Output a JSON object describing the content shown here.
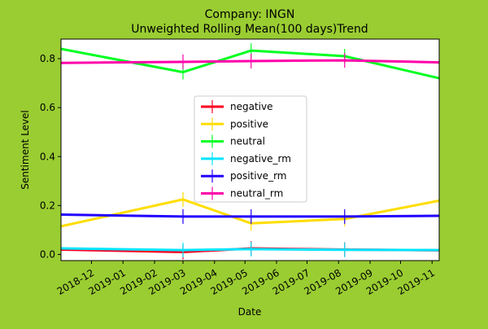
{
  "title": "Company: INGN",
  "subtitle": "Unweighted Rolling Mean(100 days)Trend",
  "chart_data": {
    "type": "line",
    "title": "Company: INGN",
    "subtitle": "Unweighted Rolling Mean(100 days)Trend",
    "xlabel": "Date",
    "ylabel": "Sentiment Level",
    "x_tick_labels": [
      "2018-12",
      "2019-01",
      "2019-02",
      "2019-03",
      "2019-04",
      "2019-05",
      "2019-06",
      "2019-07",
      "2019-08",
      "2019-09",
      "2019-10",
      "2019-11"
    ],
    "y_tick_labels": [
      "0.0",
      "0.2",
      "0.4",
      "0.6",
      "0.8"
    ],
    "xlim": [
      "2018-11-01",
      "2019-11-08"
    ],
    "ylim": [
      -0.025,
      0.88
    ],
    "grid": false,
    "legend_placement": "center",
    "series": [
      {
        "name": "negative",
        "color": "#ff0022",
        "x": [
          "2018-11-01",
          "2019-03-01",
          "2019-05-07",
          "2019-08-07",
          "2019-11-08"
        ],
        "values": [
          0.02,
          0.01,
          0.025,
          0.02,
          0.017
        ]
      },
      {
        "name": "positive",
        "color": "#ffdd00",
        "x": [
          "2018-11-01",
          "2019-03-01",
          "2019-05-07",
          "2019-08-07",
          "2019-11-08"
        ],
        "values": [
          0.115,
          0.225,
          0.127,
          0.145,
          0.22
        ]
      },
      {
        "name": "neutral",
        "color": "#00ff22",
        "x": [
          "2018-11-01",
          "2019-03-01",
          "2019-05-07",
          "2019-08-07",
          "2019-11-08"
        ],
        "values": [
          0.84,
          0.745,
          0.833,
          0.81,
          0.72
        ]
      },
      {
        "name": "negative_rm",
        "color": "#00e5ff",
        "x": [
          "2018-11-01",
          "2019-03-01",
          "2019-05-07",
          "2019-08-07",
          "2019-11-08"
        ],
        "values": [
          0.025,
          0.018,
          0.022,
          0.019,
          0.018
        ]
      },
      {
        "name": "positive_rm",
        "color": "#2200ff",
        "x": [
          "2018-11-01",
          "2019-03-01",
          "2019-05-07",
          "2019-08-07",
          "2019-11-08"
        ],
        "values": [
          0.163,
          0.155,
          0.155,
          0.155,
          0.158
        ]
      },
      {
        "name": "neutral_rm",
        "color": "#ff00aa",
        "x": [
          "2018-11-01",
          "2019-03-01",
          "2019-05-07",
          "2019-08-07",
          "2019-11-08"
        ],
        "values": [
          0.783,
          0.787,
          0.79,
          0.793,
          0.785
        ]
      }
    ]
  }
}
